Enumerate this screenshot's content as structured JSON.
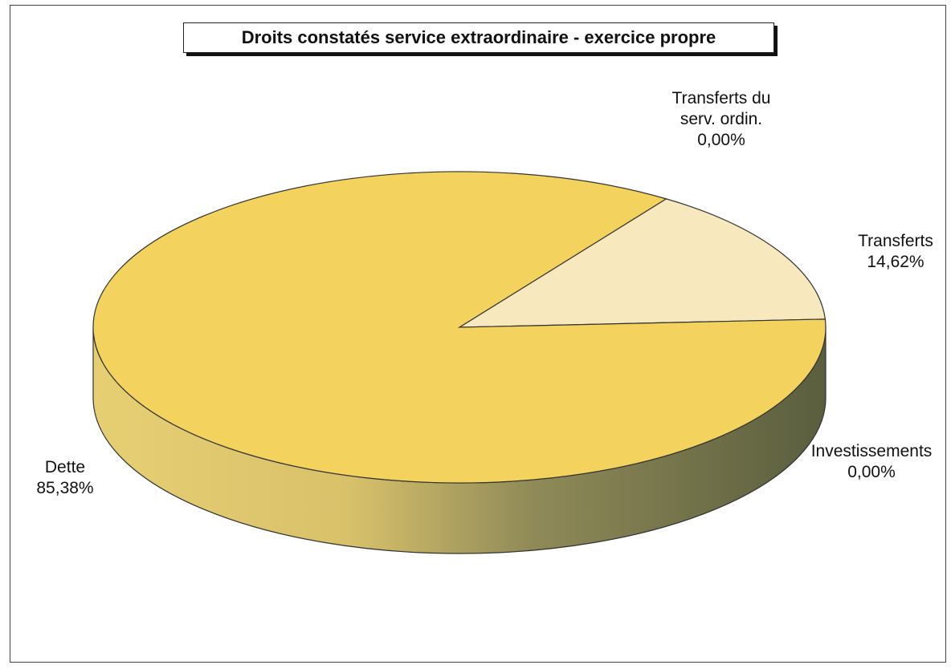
{
  "chart_data": {
    "type": "pie",
    "title": "Droits constatés service extraordinaire - exercice propre",
    "slices": [
      {
        "name": "Transferts du serv. ordin.",
        "value": 0.0,
        "label": "0,00%",
        "color": "#e8c44a"
      },
      {
        "name": "Transferts",
        "value": 14.62,
        "label": "14,62%",
        "color": "#f7e9bd"
      },
      {
        "name": "Investissements",
        "value": 0.0,
        "label": "0,00%",
        "color": "#8a8a60"
      },
      {
        "name": "Dette",
        "value": 85.38,
        "label": "85,38%",
        "color": "#f4d25e"
      }
    ],
    "labels": {
      "transferts_ordin_line1": "Transferts du",
      "transferts_ordin_line2": "serv. ordin.",
      "transferts_ordin_pct": "0,00%",
      "transferts": "Transferts",
      "transferts_pct": "14,62%",
      "investissements": "Investissements",
      "investissements_pct": "0,00%",
      "dette": "Dette",
      "dette_pct": "85,38%"
    },
    "style": "3d-pie",
    "legend": "none"
  }
}
